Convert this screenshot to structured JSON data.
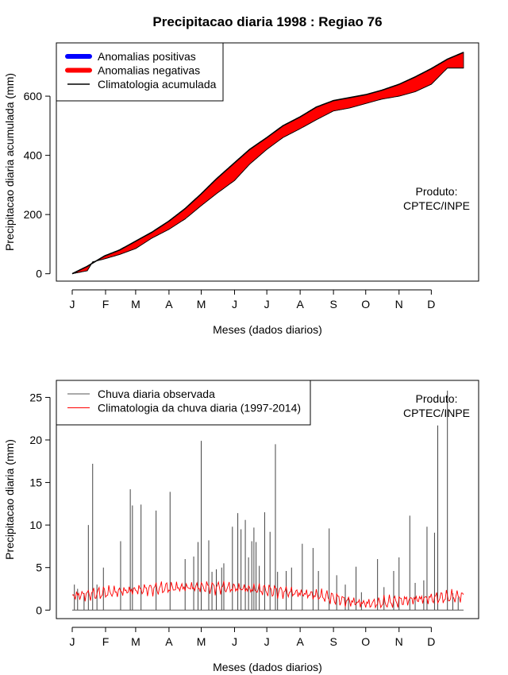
{
  "title": "Precipitacao diaria 1998 : Regiao 76",
  "watermark": [
    "Produto:",
    "CPTEC/INPE"
  ],
  "chart_data": [
    {
      "type": "area",
      "ylabel": "Precipitacao diaria acumulada (mm)",
      "xlabel": "Meses (dados diarios)",
      "ylim": [
        -25,
        780
      ],
      "yticks": [
        0,
        200,
        400,
        600
      ],
      "month_labels": [
        "J",
        "F",
        "M",
        "A",
        "M",
        "J",
        "J",
        "A",
        "S",
        "O",
        "N",
        "D"
      ],
      "month_start_days": [
        1,
        32,
        60,
        91,
        121,
        152,
        182,
        213,
        244,
        274,
        305,
        335
      ],
      "legend": [
        {
          "label": "Anomalias positivas",
          "color": "#0000ff"
        },
        {
          "label": "Anomalias negativas",
          "color": "#ff0000"
        },
        {
          "label": "Climatologia acumulada",
          "color": "#000000"
        }
      ],
      "climatology_anchors": {
        "days": [
          1,
          15,
          31,
          45,
          60,
          75,
          91,
          106,
          121,
          135,
          152,
          166,
          182,
          197,
          213,
          228,
          244,
          259,
          274,
          289,
          305,
          320,
          335,
          350,
          365
        ],
        "values": [
          0,
          25,
          60,
          80,
          110,
          140,
          178,
          220,
          270,
          320,
          375,
          420,
          460,
          500,
          530,
          563,
          585,
          595,
          605,
          620,
          640,
          665,
          693,
          725,
          748
        ]
      },
      "observed_anchors": {
        "days": [
          1,
          15,
          20,
          31,
          45,
          60,
          75,
          91,
          106,
          121,
          135,
          152,
          166,
          182,
          197,
          213,
          228,
          244,
          259,
          274,
          289,
          305,
          320,
          335,
          350,
          365
        ],
        "values": [
          0,
          10,
          40,
          50,
          65,
          85,
          120,
          150,
          185,
          230,
          270,
          315,
          370,
          420,
          460,
          490,
          520,
          550,
          560,
          575,
          590,
          600,
          615,
          640,
          695,
          695
        ]
      }
    },
    {
      "type": "bar",
      "ylabel": "Precipitacao diaria (mm)",
      "xlabel": "Meses (dados diarios)",
      "ylim": [
        -1,
        27
      ],
      "yticks": [
        0,
        5,
        10,
        15,
        20,
        25
      ],
      "month_labels": [
        "J",
        "F",
        "M",
        "A",
        "M",
        "J",
        "J",
        "A",
        "S",
        "O",
        "N",
        "D"
      ],
      "month_start_days": [
        1,
        32,
        60,
        91,
        121,
        152,
        182,
        213,
        244,
        274,
        305,
        335
      ],
      "legend": [
        {
          "label": "Chuva diaria observada",
          "color": "#555555"
        },
        {
          "label": "Climatologia da chuva diaria (1997-2014)",
          "color": "#ff0000"
        }
      ],
      "observed_daily": {
        "days": [
          3,
          6,
          12,
          16,
          20,
          24,
          30,
          46,
          55,
          57,
          65,
          79,
          92,
          106,
          114,
          118,
          121,
          128,
          131,
          135,
          140,
          142,
          150,
          155,
          158,
          162,
          165,
          168,
          170,
          172,
          175,
          180,
          185,
          190,
          192,
          200,
          205,
          215,
          225,
          230,
          240,
          247,
          255,
          258,
          265,
          270,
          285,
          291,
          300,
          305,
          315,
          320,
          328,
          331,
          338,
          341,
          350,
          355,
          360
        ],
        "values": [
          3,
          2.5,
          2,
          10,
          17.2,
          3,
          5,
          8.1,
          14.2,
          12.3,
          12.4,
          11.7,
          13.9,
          6,
          6.3,
          8,
          19.9,
          8.2,
          4.5,
          4.8,
          5,
          5.5,
          9.8,
          11.4,
          9.5,
          10.6,
          6.2,
          8.1,
          9.7,
          8,
          5.2,
          11.5,
          9.2,
          19.5,
          4.5,
          4.6,
          5,
          7.8,
          7.3,
          4.6,
          9.6,
          4.1,
          3,
          1.5,
          5.1,
          2.1,
          6,
          2.7,
          4.6,
          6.2,
          11.1,
          3.2,
          3.5,
          9.8,
          9.1,
          21.7,
          25.8,
          2,
          1.5
        ]
      }
    }
  ]
}
